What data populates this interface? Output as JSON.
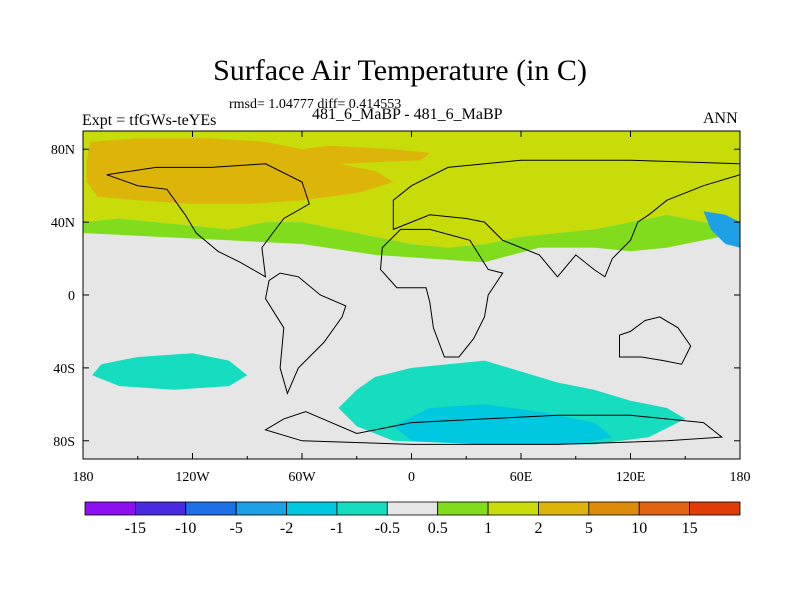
{
  "chart_data": {
    "type": "heatmap",
    "title": "Surface Air Temperature (in C)",
    "subtitle": "rmsd= 1.04777 diff= 0.414553",
    "left_label": "Expt = tfGWs-teYEs",
    "center_label": "481_6_MaBP - 481_6_MaBP",
    "right_label": "ANN",
    "x_ticks": [
      {
        "value": -180,
        "label": "180"
      },
      {
        "value": -120,
        "label": "120W"
      },
      {
        "value": -60,
        "label": "60W"
      },
      {
        "value": 0,
        "label": "0"
      },
      {
        "value": 60,
        "label": "60E"
      },
      {
        "value": 120,
        "label": "120E"
      },
      {
        "value": 180,
        "label": "180"
      }
    ],
    "y_ticks": [
      {
        "value": 80,
        "label": "80N"
      },
      {
        "value": 40,
        "label": "40N"
      },
      {
        "value": 0,
        "label": "0"
      },
      {
        "value": -40,
        "label": "40S"
      },
      {
        "value": -80,
        "label": "80S"
      }
    ],
    "xlim": [
      -180,
      180
    ],
    "ylim": [
      -90,
      90
    ],
    "colorbar": {
      "labels": [
        "-15",
        "-10",
        "-5",
        "-2",
        "-1",
        "-0.5",
        "0.5",
        "1",
        "2",
        "5",
        "10",
        "15"
      ],
      "colors": [
        "#8c10f0",
        "#4a2ae0",
        "#1f6fe6",
        "#1ea0e6",
        "#00c8e0",
        "#16dcc0",
        "#e6e6e6",
        "#82dc1e",
        "#c8dc0a",
        "#dcb40a",
        "#dc8c0a",
        "#e06414",
        "#e03c0a"
      ]
    },
    "regions": [
      {
        "name": "north-pacific-atlantic-warm-band",
        "value": "1 to 2",
        "color": "#c8dc0a",
        "polygon": [
          [
            -180,
            90
          ],
          [
            180,
            90
          ],
          [
            180,
            38
          ],
          [
            160,
            40
          ],
          [
            140,
            44
          ],
          [
            120,
            40
          ],
          [
            100,
            36
          ],
          [
            80,
            34
          ],
          [
            60,
            32
          ],
          [
            40,
            28
          ],
          [
            20,
            26
          ],
          [
            0,
            28
          ],
          [
            -20,
            32
          ],
          [
            -40,
            36
          ],
          [
            -60,
            40
          ],
          [
            -80,
            40
          ],
          [
            -100,
            36
          ],
          [
            -120,
            38
          ],
          [
            -140,
            40
          ],
          [
            -160,
            42
          ],
          [
            -180,
            40
          ]
        ]
      },
      {
        "name": "northern-hemisphere-strong-warming",
        "value": "2 to 5",
        "color": "#dcb40a",
        "polygon": [
          [
            -176,
            84
          ],
          [
            -150,
            86
          ],
          [
            -110,
            86
          ],
          [
            -80,
            84
          ],
          [
            -60,
            80
          ],
          [
            -45,
            82
          ],
          [
            -10,
            80
          ],
          [
            10,
            78
          ],
          [
            5,
            74
          ],
          [
            -40,
            72
          ],
          [
            -20,
            68
          ],
          [
            -10,
            62
          ],
          [
            -30,
            56
          ],
          [
            -60,
            52
          ],
          [
            -90,
            50
          ],
          [
            -120,
            50
          ],
          [
            -150,
            52
          ],
          [
            -172,
            54
          ],
          [
            -178,
            62
          ],
          [
            -178,
            74
          ]
        ]
      },
      {
        "name": "mid-latitude-green-band",
        "value": "0.5 to 1",
        "color": "#82dc1e",
        "polygon": [
          [
            -180,
            40
          ],
          [
            -160,
            42
          ],
          [
            -140,
            40
          ],
          [
            -120,
            38
          ],
          [
            -100,
            36
          ],
          [
            -80,
            40
          ],
          [
            -60,
            40
          ],
          [
            -40,
            36
          ],
          [
            -20,
            32
          ],
          [
            0,
            28
          ],
          [
            20,
            26
          ],
          [
            40,
            28
          ],
          [
            60,
            32
          ],
          [
            80,
            34
          ],
          [
            100,
            36
          ],
          [
            120,
            40
          ],
          [
            140,
            44
          ],
          [
            160,
            40
          ],
          [
            180,
            38
          ],
          [
            180,
            34
          ],
          [
            160,
            30
          ],
          [
            140,
            26
          ],
          [
            120,
            24
          ],
          [
            100,
            26
          ],
          [
            70,
            26
          ],
          [
            40,
            18
          ],
          [
            10,
            20
          ],
          [
            -20,
            22
          ],
          [
            -60,
            28
          ],
          [
            -100,
            30
          ],
          [
            -140,
            32
          ],
          [
            -180,
            34
          ]
        ]
      },
      {
        "name": "southern-ocean-cooling",
        "value": "-1 to -0.5",
        "color": "#16dcc0",
        "polygon": [
          [
            -20,
            -45
          ],
          [
            0,
            -40
          ],
          [
            20,
            -38
          ],
          [
            40,
            -36
          ],
          [
            60,
            -42
          ],
          [
            80,
            -48
          ],
          [
            100,
            -52
          ],
          [
            120,
            -58
          ],
          [
            140,
            -62
          ],
          [
            150,
            -68
          ],
          [
            130,
            -78
          ],
          [
            100,
            -82
          ],
          [
            40,
            -82
          ],
          [
            -10,
            -80
          ],
          [
            -30,
            -72
          ],
          [
            -40,
            -62
          ],
          [
            -30,
            -52
          ]
        ]
      },
      {
        "name": "south-pacific-cooling",
        "value": "-1 to -0.5",
        "color": "#16dcc0",
        "polygon": [
          [
            -170,
            -38
          ],
          [
            -150,
            -34
          ],
          [
            -120,
            -32
          ],
          [
            -100,
            -36
          ],
          [
            -90,
            -44
          ],
          [
            -100,
            -50
          ],
          [
            -130,
            -52
          ],
          [
            -160,
            -50
          ],
          [
            -175,
            -44
          ]
        ]
      },
      {
        "name": "antarctic-coast-cooling",
        "value": "-2 to -1",
        "color": "#00c8e0",
        "polygon": [
          [
            10,
            -62
          ],
          [
            40,
            -60
          ],
          [
            70,
            -64
          ],
          [
            100,
            -70
          ],
          [
            110,
            -78
          ],
          [
            90,
            -82
          ],
          [
            40,
            -82
          ],
          [
            0,
            -80
          ],
          [
            -10,
            -72
          ]
        ]
      },
      {
        "name": "east-asia-cooling",
        "value": "-2 to -1",
        "color": "#1ea0e6",
        "polygon": [
          [
            160,
            46
          ],
          [
            172,
            44
          ],
          [
            180,
            40
          ],
          [
            180,
            26
          ],
          [
            172,
            28
          ],
          [
            164,
            36
          ]
        ]
      }
    ]
  }
}
